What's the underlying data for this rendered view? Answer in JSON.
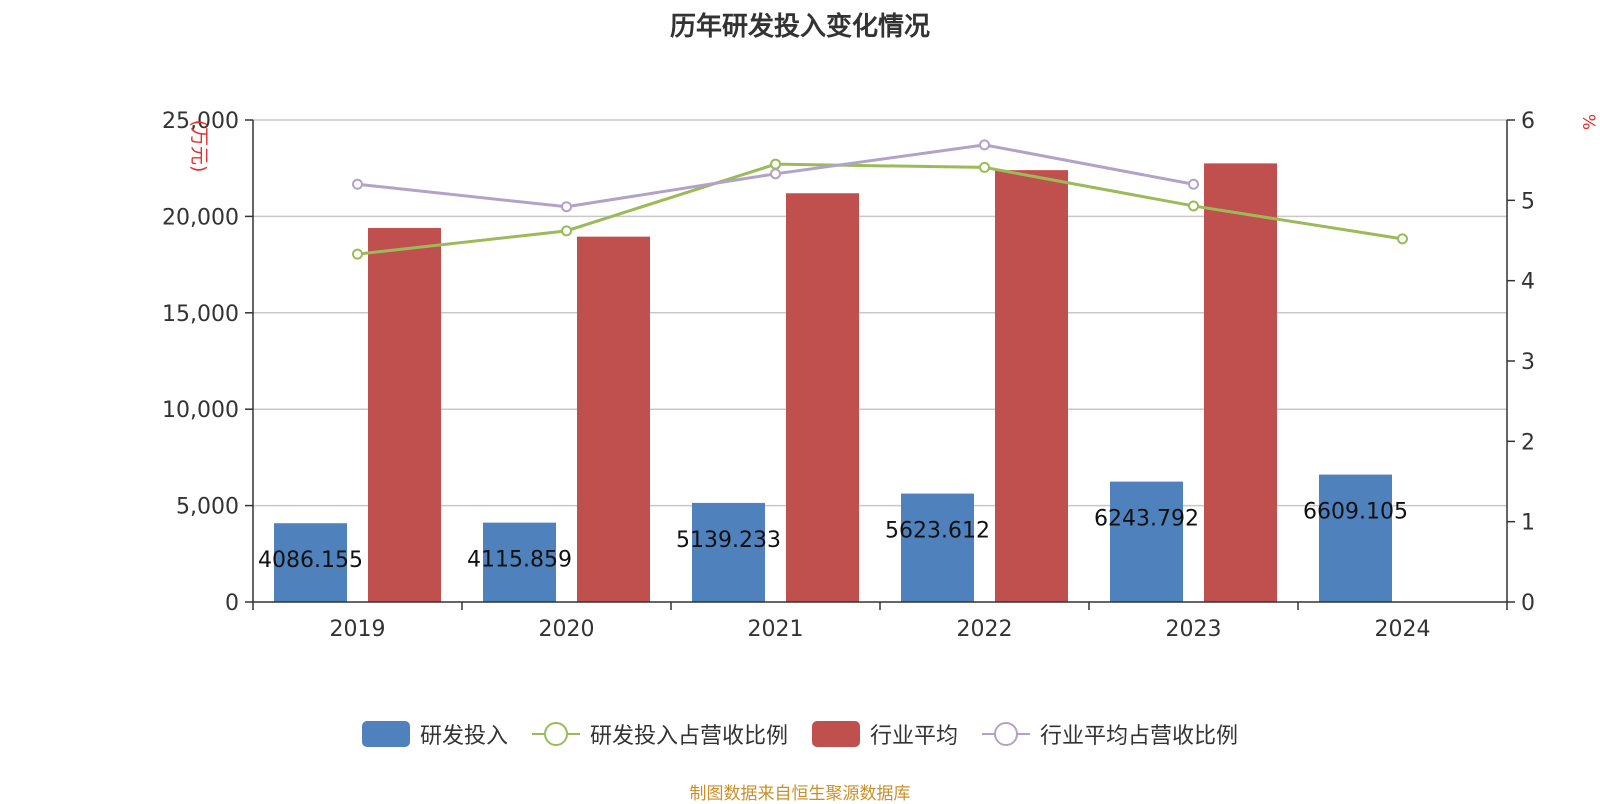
{
  "chart_data": {
    "type": "bar",
    "title": "历年研发投入变化情况",
    "categories": [
      "2019",
      "2020",
      "2021",
      "2022",
      "2023",
      "2024"
    ],
    "left_axis": {
      "unit_label": "(万元)",
      "min": 0,
      "max": 25000,
      "ticks": [
        "0",
        "5,000",
        "10,000",
        "15,000",
        "20,000",
        "25,000"
      ],
      "tick_values": [
        0,
        5000,
        10000,
        15000,
        20000,
        25000
      ]
    },
    "right_axis": {
      "unit_label": "%",
      "min": 0,
      "max": 6,
      "ticks": [
        "0",
        "1",
        "2",
        "3",
        "4",
        "5",
        "6"
      ],
      "tick_values": [
        0,
        1,
        2,
        3,
        4,
        5,
        6
      ]
    },
    "grid": true,
    "legend_position": "bottom",
    "series": [
      {
        "name": "研发投入",
        "kind": "bar",
        "axis": "left",
        "color": "#4f81bd",
        "values": [
          4086.155,
          4115.859,
          5139.233,
          5623.612,
          6243.792,
          6609.105
        ],
        "labels": [
          "4086.155",
          "4115.859",
          "5139.233",
          "5623.612",
          "6243.792",
          "6609.105"
        ]
      },
      {
        "name": "研发投入占营收比例",
        "kind": "line",
        "axis": "right",
        "color": "#9bbb59",
        "values": [
          4.33,
          4.62,
          5.45,
          5.41,
          4.93,
          4.52
        ]
      },
      {
        "name": "行业平均",
        "kind": "bar",
        "axis": "left",
        "color": "#c0504d",
        "values": [
          19400,
          18950,
          21200,
          22400,
          22750,
          null
        ]
      },
      {
        "name": "行业平均占营收比例",
        "kind": "line",
        "axis": "right",
        "color": "#b3a2c7",
        "values": [
          5.2,
          4.92,
          5.33,
          5.69,
          5.2,
          null
        ]
      }
    ]
  },
  "source_note": "制图数据来自恒生聚源数据库"
}
